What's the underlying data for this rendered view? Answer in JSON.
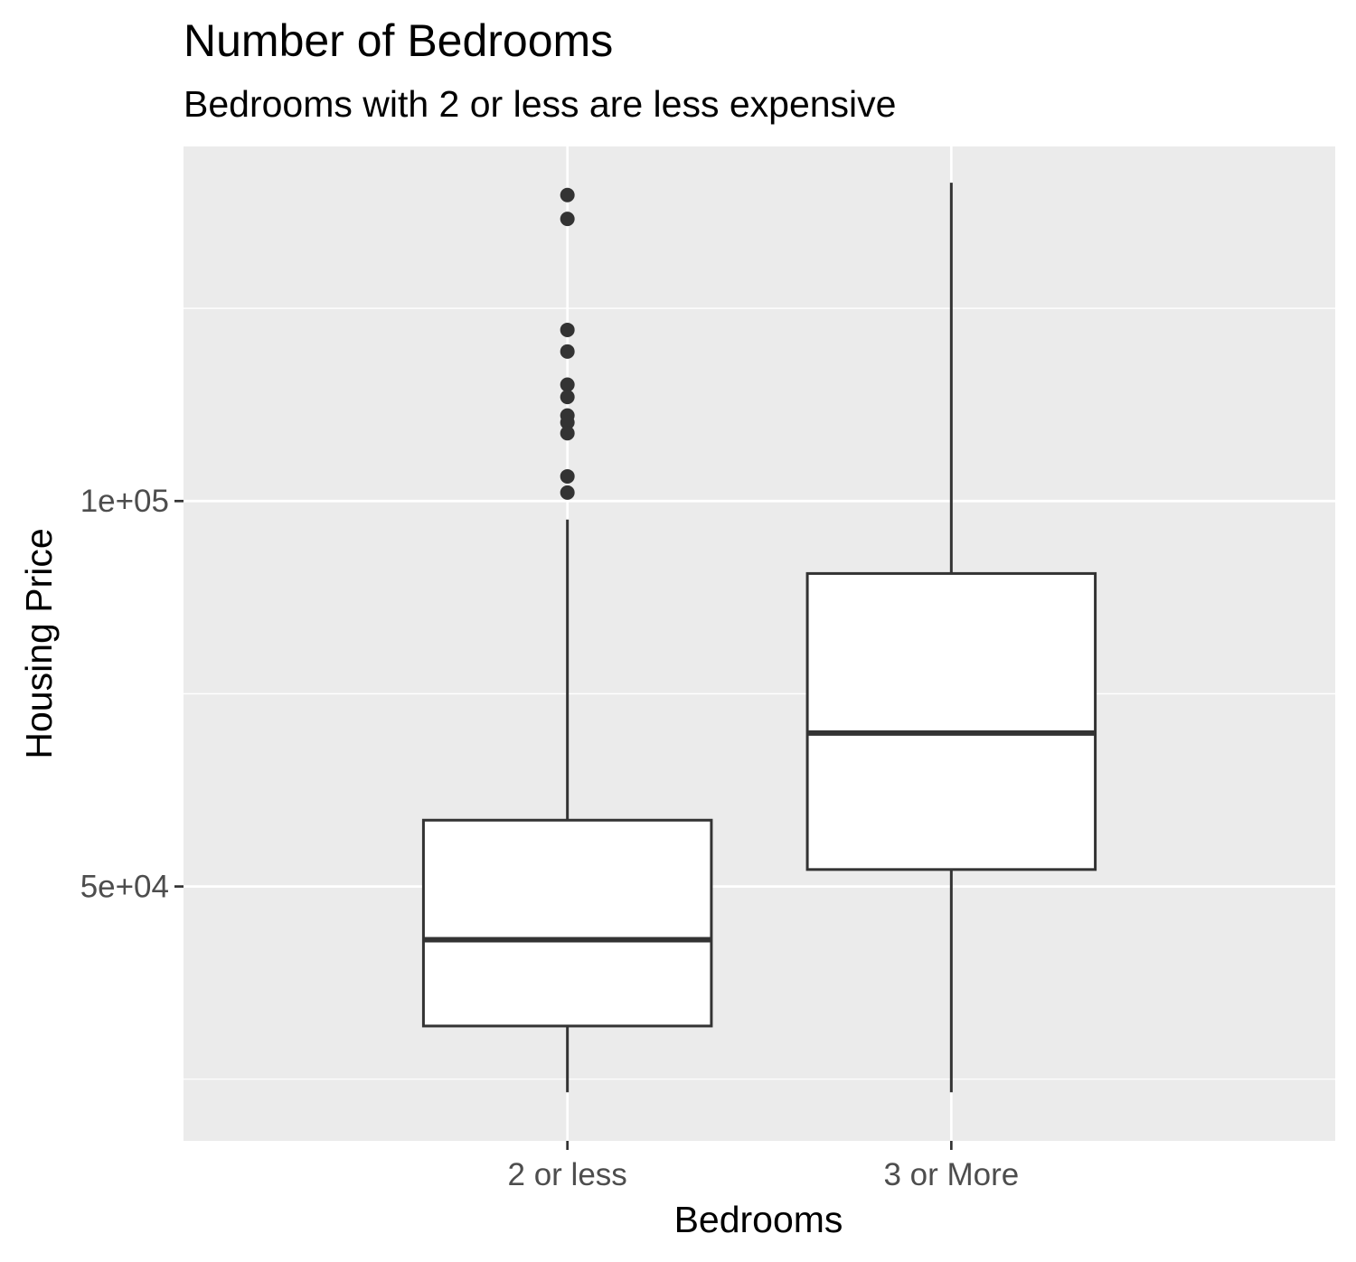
{
  "chart_data": {
    "type": "boxplot",
    "title": "Number of Bedrooms",
    "subtitle": "Bedrooms with 2 or less are less expensive",
    "xlabel": "Bedrooms",
    "ylabel": "Housing Price",
    "categories": [
      "2 or less",
      "3 or More"
    ],
    "yticks": [
      50000,
      100000
    ],
    "ytick_labels": [
      "5e+04",
      "1e+05"
    ],
    "ylim": [
      17000,
      146000
    ],
    "grid": true,
    "boxes": [
      {
        "category": "2 or less",
        "whisker_low": 23300,
        "q1": 31900,
        "median": 43100,
        "q3": 58600,
        "whisker_high": 97600,
        "outliers": [
          139700,
          136600,
          122200,
          119400,
          115100,
          113500,
          111100,
          110200,
          108800,
          103200,
          101100
        ]
      },
      {
        "category": "3 or More",
        "whisker_low": 23300,
        "q1": 52200,
        "median": 69900,
        "q3": 90600,
        "whisker_high": 141300,
        "outliers": []
      }
    ],
    "colors": {
      "panel": "#ebebeb",
      "grid": "#ffffff",
      "box_fill": "#ffffff",
      "box_line": "#333333",
      "tick_text": "#4d4d4d"
    }
  }
}
